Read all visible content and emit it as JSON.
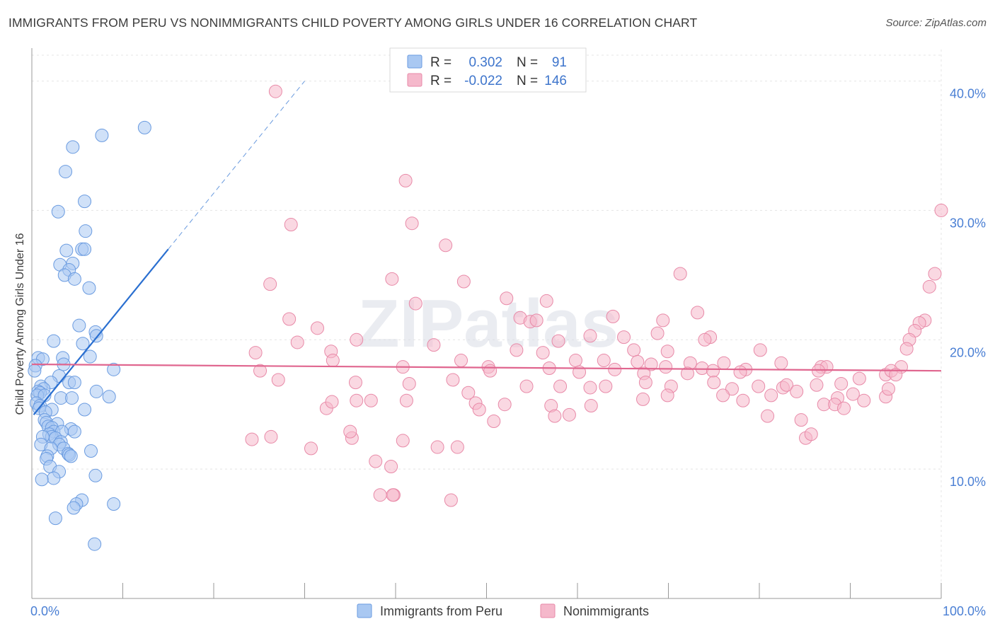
{
  "title": "IMMIGRANTS FROM PERU VS NONIMMIGRANTS CHILD POVERTY AMONG GIRLS UNDER 16 CORRELATION CHART",
  "source": "Source: ZipAtlas.com",
  "watermark": "ZIPatlas",
  "colors": {
    "blue_fill": "#a9c8f2",
    "blue_stroke": "#6a9be0",
    "blue_line": "#2a6fd0",
    "pink_fill": "#f5b8cb",
    "pink_stroke": "#e88aa8",
    "pink_line": "#e0668f",
    "value_text": "#3e75cc"
  },
  "legend": {
    "rows": [
      {
        "r_label": "R =",
        "r_value": "0.302",
        "n_label": "N =",
        "n_value": "91"
      },
      {
        "r_label": "R =",
        "r_value": "-0.022",
        "n_label": "N =",
        "n_value": "146"
      }
    ]
  },
  "bottom_legend": [
    "Immigrants from Peru",
    "Nonimmigrants"
  ],
  "chart_data": {
    "type": "scatter",
    "title": "IMMIGRANTS FROM PERU VS NONIMMIGRANTS CHILD POVERTY AMONG GIRLS UNDER 16 CORRELATION CHART",
    "xlabel": "",
    "ylabel": "Child Poverty Among Girls Under 16",
    "xlim": [
      0,
      100
    ],
    "ylim": [
      0,
      42
    ],
    "x_tick_labels": [
      {
        "value": 0,
        "label": "0.0%"
      },
      {
        "value": 100,
        "label": "100.0%"
      }
    ],
    "y_tick_labels": [
      {
        "value": 10,
        "label": "10.0%"
      },
      {
        "value": 20,
        "label": "20.0%"
      },
      {
        "value": 30,
        "label": "30.0%"
      },
      {
        "value": 40,
        "label": "40.0%"
      }
    ],
    "grid": true,
    "legend_position": "top-center",
    "series": [
      {
        "name": "Immigrants from Peru",
        "R": 0.302,
        "N": 91,
        "trend": {
          "x": [
            0.2,
            15
          ],
          "y": [
            14.2,
            27.0
          ],
          "dashed_to": {
            "x": 30,
            "y": 40.0
          }
        },
        "points": [
          [
            12.4,
            36.4
          ],
          [
            7.7,
            35.8
          ],
          [
            4.5,
            34.9
          ],
          [
            3.7,
            33.0
          ],
          [
            5.8,
            30.7
          ],
          [
            2.9,
            29.9
          ],
          [
            5.9,
            28.4
          ],
          [
            3.8,
            26.9
          ],
          [
            5.5,
            27.0
          ],
          [
            5.8,
            27.0
          ],
          [
            3.1,
            25.8
          ],
          [
            4.5,
            25.9
          ],
          [
            4.1,
            25.4
          ],
          [
            3.6,
            25.0
          ],
          [
            4.7,
            24.7
          ],
          [
            6.3,
            24.0
          ],
          [
            5.2,
            21.1
          ],
          [
            7.0,
            20.6
          ],
          [
            7.1,
            20.3
          ],
          [
            2.4,
            19.9
          ],
          [
            5.6,
            19.7
          ],
          [
            6.4,
            18.7
          ],
          [
            0.7,
            18.6
          ],
          [
            1.2,
            18.5
          ],
          [
            3.4,
            18.6
          ],
          [
            3.5,
            18.1
          ],
          [
            0.4,
            18.0
          ],
          [
            0.3,
            17.6
          ],
          [
            9.0,
            17.7
          ],
          [
            3.0,
            17.2
          ],
          [
            2.1,
            16.7
          ],
          [
            4.1,
            16.7
          ],
          [
            4.7,
            16.7
          ],
          [
            1.0,
            16.4
          ],
          [
            1.3,
            16.2
          ],
          [
            0.7,
            16.0
          ],
          [
            0.9,
            15.9
          ],
          [
            0.6,
            15.7
          ],
          [
            1.4,
            15.7
          ],
          [
            3.2,
            15.5
          ],
          [
            4.4,
            15.5
          ],
          [
            7.1,
            16.0
          ],
          [
            8.5,
            15.6
          ],
          [
            0.5,
            15.1
          ],
          [
            0.9,
            14.9
          ],
          [
            0.8,
            14.7
          ],
          [
            2.2,
            14.6
          ],
          [
            1.5,
            14.4
          ],
          [
            5.8,
            14.6
          ],
          [
            1.4,
            13.8
          ],
          [
            1.6,
            13.6
          ],
          [
            2.8,
            13.5
          ],
          [
            1.8,
            13.3
          ],
          [
            2.2,
            13.2
          ],
          [
            4.3,
            13.1
          ],
          [
            2.4,
            12.9
          ],
          [
            3.3,
            12.9
          ],
          [
            4.7,
            12.9
          ],
          [
            1.9,
            12.7
          ],
          [
            2.2,
            12.5
          ],
          [
            1.2,
            12.5
          ],
          [
            2.6,
            12.4
          ],
          [
            3.2,
            12.1
          ],
          [
            1.0,
            11.9
          ],
          [
            3.0,
            11.9
          ],
          [
            2.1,
            11.6
          ],
          [
            3.5,
            11.6
          ],
          [
            6.5,
            11.4
          ],
          [
            4.0,
            11.2
          ],
          [
            4.1,
            11.1
          ],
          [
            4.3,
            11.0
          ],
          [
            1.7,
            11.0
          ],
          [
            1.6,
            10.8
          ],
          [
            2.0,
            10.2
          ],
          [
            3.0,
            9.8
          ],
          [
            7.0,
            9.5
          ],
          [
            2.4,
            9.3
          ],
          [
            1.1,
            9.2
          ],
          [
            5.5,
            7.6
          ],
          [
            4.9,
            7.3
          ],
          [
            4.6,
            7.0
          ],
          [
            9.0,
            7.3
          ],
          [
            2.6,
            6.2
          ],
          [
            6.9,
            4.2
          ]
        ]
      },
      {
        "name": "Nonimmigrants",
        "R": -0.022,
        "N": 146,
        "trend": {
          "x": [
            0,
            100
          ],
          "y": [
            18.1,
            17.6
          ]
        },
        "points": [
          [
            26.8,
            39.2
          ],
          [
            41.1,
            32.3
          ],
          [
            28.5,
            28.9
          ],
          [
            41.8,
            29.0
          ],
          [
            45.5,
            27.3
          ],
          [
            100.0,
            30.0
          ],
          [
            71.3,
            25.1
          ],
          [
            99.3,
            25.1
          ],
          [
            26.2,
            24.3
          ],
          [
            39.6,
            24.7
          ],
          [
            47.5,
            24.5
          ],
          [
            98.7,
            24.1
          ],
          [
            42.2,
            22.8
          ],
          [
            52.2,
            23.2
          ],
          [
            56.6,
            23.0
          ],
          [
            73.2,
            22.1
          ],
          [
            28.3,
            21.6
          ],
          [
            53.7,
            21.7
          ],
          [
            54.8,
            21.4
          ],
          [
            55.5,
            21.5
          ],
          [
            63.9,
            21.8
          ],
          [
            69.4,
            21.5
          ],
          [
            98.2,
            21.5
          ],
          [
            97.6,
            21.3
          ],
          [
            31.4,
            20.9
          ],
          [
            35.7,
            20.0
          ],
          [
            61.4,
            20.3
          ],
          [
            65.1,
            20.2
          ],
          [
            68.8,
            20.5
          ],
          [
            74.6,
            20.2
          ],
          [
            29.2,
            19.8
          ],
          [
            44.2,
            19.6
          ],
          [
            57.9,
            19.9
          ],
          [
            74.0,
            20.0
          ],
          [
            97.1,
            20.7
          ],
          [
            96.5,
            20.0
          ],
          [
            24.6,
            19.0
          ],
          [
            32.9,
            19.1
          ],
          [
            53.3,
            19.2
          ],
          [
            56.2,
            19.0
          ],
          [
            66.2,
            19.2
          ],
          [
            69.9,
            19.1
          ],
          [
            80.1,
            19.2
          ],
          [
            96.2,
            19.3
          ],
          [
            33.1,
            18.4
          ],
          [
            47.2,
            18.4
          ],
          [
            59.8,
            18.4
          ],
          [
            62.9,
            18.4
          ],
          [
            66.6,
            18.3
          ],
          [
            68.1,
            18.1
          ],
          [
            72.4,
            18.2
          ],
          [
            76.1,
            18.2
          ],
          [
            82.4,
            18.2
          ],
          [
            40.8,
            17.9
          ],
          [
            50.2,
            17.9
          ],
          [
            56.9,
            17.8
          ],
          [
            64.1,
            17.7
          ],
          [
            69.7,
            17.9
          ],
          [
            73.7,
            17.8
          ],
          [
            78.5,
            17.7
          ],
          [
            86.8,
            17.9
          ],
          [
            87.4,
            17.9
          ],
          [
            95.6,
            17.9
          ],
          [
            25.1,
            17.6
          ],
          [
            50.4,
            17.6
          ],
          [
            60.2,
            17.5
          ],
          [
            67.3,
            17.4
          ],
          [
            72.1,
            17.4
          ],
          [
            74.9,
            17.6
          ],
          [
            77.9,
            17.5
          ],
          [
            86.5,
            17.6
          ],
          [
            93.9,
            17.3
          ],
          [
            94.5,
            17.6
          ],
          [
            95.0,
            17.3
          ],
          [
            27.1,
            16.9
          ],
          [
            35.6,
            16.7
          ],
          [
            41.5,
            16.6
          ],
          [
            46.3,
            16.9
          ],
          [
            54.4,
            16.4
          ],
          [
            58.1,
            16.4
          ],
          [
            61.4,
            16.3
          ],
          [
            63.1,
            16.4
          ],
          [
            67.5,
            16.7
          ],
          [
            70.3,
            16.4
          ],
          [
            75.0,
            16.7
          ],
          [
            77.0,
            16.2
          ],
          [
            79.9,
            16.4
          ],
          [
            82.6,
            16.3
          ],
          [
            83.0,
            16.5
          ],
          [
            86.3,
            16.5
          ],
          [
            89.0,
            16.6
          ],
          [
            91.0,
            17.0
          ],
          [
            32.4,
            14.7
          ],
          [
            33.0,
            15.2
          ],
          [
            35.7,
            15.3
          ],
          [
            37.3,
            15.3
          ],
          [
            41.2,
            15.3
          ],
          [
            48.0,
            15.9
          ],
          [
            48.8,
            15.1
          ],
          [
            52.0,
            15.0
          ],
          [
            57.1,
            14.9
          ],
          [
            61.5,
            14.9
          ],
          [
            67.2,
            15.4
          ],
          [
            69.9,
            15.7
          ],
          [
            76.0,
            15.7
          ],
          [
            78.2,
            15.3
          ],
          [
            81.3,
            15.7
          ],
          [
            84.1,
            16.0
          ],
          [
            87.1,
            15.0
          ],
          [
            88.6,
            15.5
          ],
          [
            90.3,
            15.8
          ],
          [
            91.5,
            15.3
          ],
          [
            93.9,
            15.6
          ],
          [
            94.2,
            16.2
          ],
          [
            49.2,
            14.6
          ],
          [
            50.8,
            13.7
          ],
          [
            57.5,
            14.1
          ],
          [
            59.1,
            14.2
          ],
          [
            80.9,
            14.1
          ],
          [
            84.6,
            13.8
          ],
          [
            88.3,
            15.0
          ],
          [
            89.3,
            14.7
          ],
          [
            24.2,
            12.3
          ],
          [
            26.3,
            12.5
          ],
          [
            35.2,
            12.4
          ],
          [
            40.8,
            12.2
          ],
          [
            44.6,
            11.7
          ],
          [
            46.8,
            11.7
          ],
          [
            30.7,
            11.6
          ],
          [
            35.0,
            12.9
          ],
          [
            37.8,
            10.6
          ],
          [
            39.5,
            10.2
          ],
          [
            85.1,
            12.4
          ],
          [
            85.7,
            12.7
          ],
          [
            38.3,
            8.0
          ],
          [
            39.8,
            8.0
          ],
          [
            46.1,
            7.6
          ],
          [
            39.7,
            8.0
          ]
        ]
      }
    ]
  }
}
